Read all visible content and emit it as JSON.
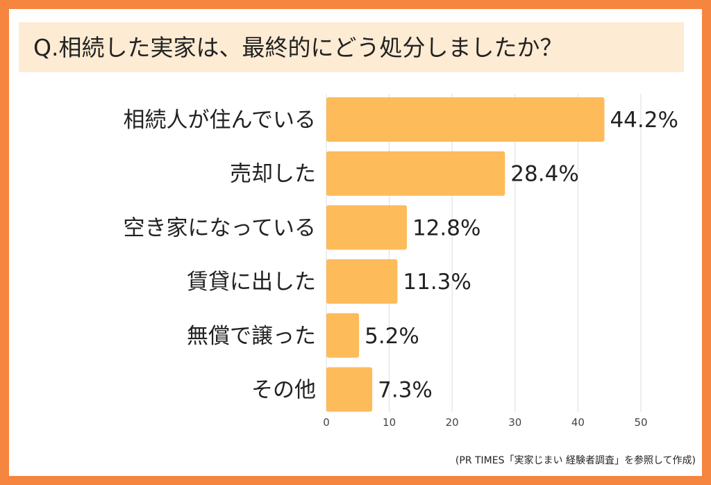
{
  "title": "Q.相続した実家は、最終的にどう処分しましたか？",
  "source": "(PR TIMES「実家じまい 経験者調査」を参照して作成)",
  "colors": {
    "border": "#f5853f",
    "title_bg": "#fdebd3",
    "bar": "#fdbb5a",
    "grid": "#dddddd"
  },
  "chart_data": {
    "type": "bar",
    "orientation": "horizontal",
    "categories": [
      "相続人が住んでいる",
      "売却した",
      "空き家になっている",
      "賃貸に出した",
      "無償で譲った",
      "その他"
    ],
    "values": [
      44.2,
      28.4,
      12.8,
      11.3,
      5.2,
      7.3
    ],
    "value_labels": [
      "44.2%",
      "28.4%",
      "12.8%",
      "11.3%",
      "5.2%",
      "7.3%"
    ],
    "title": "Q.相続した実家は、最終的にどう処分しましたか？",
    "xlabel": "",
    "ylabel": "",
    "xlim": [
      0,
      50
    ],
    "xticks": [
      0,
      10,
      20,
      30,
      40,
      50
    ],
    "grid": true,
    "legend": "none"
  }
}
